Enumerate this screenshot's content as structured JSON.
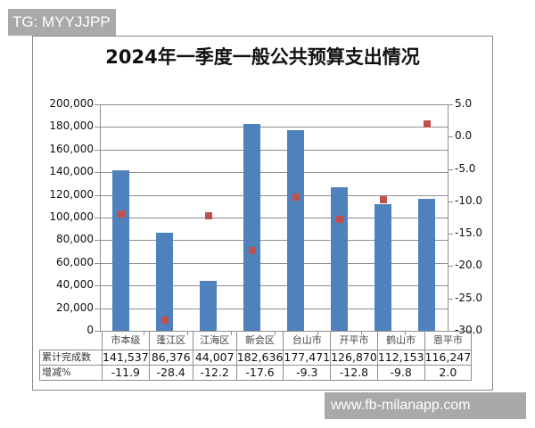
{
  "watermarks": {
    "top": "TG: MYYJJPP",
    "bottom": "www.fb-milanapp.com"
  },
  "chart_data": {
    "type": "bar",
    "title": "2024年一季度一般公共预算支出情况",
    "categories": [
      "市本级",
      "蓬江区",
      "江海区",
      "新会区",
      "台山市",
      "开平市",
      "鹤山市",
      "恩平市"
    ],
    "series": [
      {
        "name": "累计完成数",
        "type": "bar",
        "axis": "left",
        "color": "#4f81bd",
        "values": [
          141537,
          86376,
          44007,
          182636,
          177471,
          126870,
          112153,
          116247
        ],
        "labels": [
          "141,537",
          "86,376",
          "44,007",
          "182,636",
          "177,471",
          "126,870",
          "112,153",
          "116,247"
        ]
      },
      {
        "name": "增减%",
        "type": "scatter",
        "axis": "right",
        "color": "#c0504d",
        "values": [
          -11.9,
          -28.4,
          -12.2,
          -17.6,
          -9.3,
          -12.8,
          -9.8,
          2.0
        ],
        "labels": [
          "-11.9",
          "-28.4",
          "-12.2",
          "-17.6",
          "-9.3",
          "-12.8",
          "-9.8",
          "2.0"
        ]
      }
    ],
    "y_left": {
      "ylim": [
        0,
        200000
      ],
      "ticks": [
        "200,000",
        "180,000",
        "160,000",
        "140,000",
        "120,000",
        "100,000",
        "80,000",
        "60,000",
        "40,000",
        "20,000",
        "0"
      ]
    },
    "y_right": {
      "ylim": [
        -30.0,
        5.0
      ],
      "ticks": [
        "5.0",
        "0.0",
        "-5.0",
        "-10.0",
        "-15.0",
        "-20.0",
        "-25.0",
        "-30.0"
      ]
    },
    "grid": true,
    "legend": "data-table",
    "xlabel": "",
    "ylabel": ""
  },
  "table": {
    "row_labels": [
      "累计完成数",
      "增减%"
    ]
  }
}
